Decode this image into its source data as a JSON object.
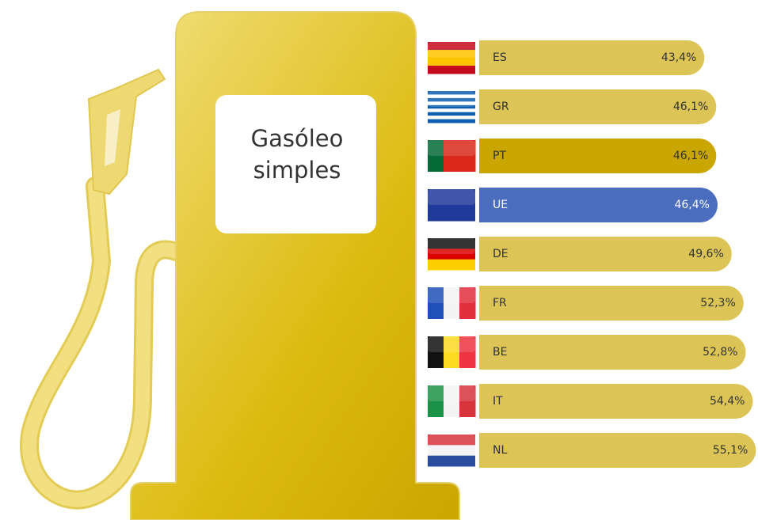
{
  "chart_data": {
    "type": "bar",
    "title": "Gasóleo simples",
    "categories": [
      "ES",
      "GR",
      "PT",
      "UE",
      "DE",
      "FR",
      "BE",
      "IT",
      "NL"
    ],
    "values": [
      43.4,
      46.1,
      46.1,
      46.4,
      49.6,
      52.3,
      52.8,
      54.4,
      55.1
    ],
    "value_labels": [
      "43,4%",
      "46,1%",
      "46,1%",
      "46,4%",
      "49,6%",
      "52,3%",
      "52,8%",
      "54,4%",
      "55,1%"
    ],
    "colors": [
      "#dcc556",
      "#dcc556",
      "#c9a700",
      "#4a6dbd",
      "#dcc556",
      "#dcc556",
      "#dcc556",
      "#dcc556",
      "#dcc556"
    ]
  }
}
